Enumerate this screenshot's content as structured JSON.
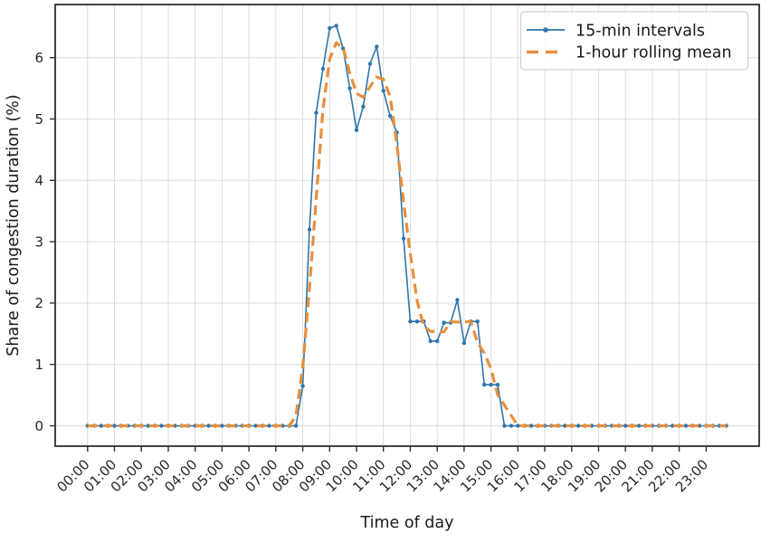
{
  "chart_data": {
    "type": "line",
    "xlabel": "Time of day",
    "ylabel": "Share of congestion duration (%)",
    "grid": true,
    "legend_position": "upper right",
    "ylim": [
      -0.33,
      6.87
    ],
    "yticks": [
      0,
      1,
      2,
      3,
      4,
      5,
      6
    ],
    "xticks": [
      "00:00",
      "01:00",
      "02:00",
      "03:00",
      "04:00",
      "05:00",
      "06:00",
      "07:00",
      "08:00",
      "09:00",
      "10:00",
      "11:00",
      "12:00",
      "13:00",
      "14:00",
      "15:00",
      "16:00",
      "17:00",
      "18:00",
      "19:00",
      "20:00",
      "21:00",
      "22:00",
      "23:00"
    ],
    "x": [
      "00:00",
      "00:15",
      "00:30",
      "00:45",
      "01:00",
      "01:15",
      "01:30",
      "01:45",
      "02:00",
      "02:15",
      "02:30",
      "02:45",
      "03:00",
      "03:15",
      "03:30",
      "03:45",
      "04:00",
      "04:15",
      "04:30",
      "04:45",
      "05:00",
      "05:15",
      "05:30",
      "05:45",
      "06:00",
      "06:15",
      "06:30",
      "06:45",
      "07:00",
      "07:15",
      "07:30",
      "07:45",
      "08:00",
      "08:15",
      "08:30",
      "08:45",
      "09:00",
      "09:15",
      "09:30",
      "09:45",
      "10:00",
      "10:15",
      "10:30",
      "10:45",
      "11:00",
      "11:15",
      "11:30",
      "11:45",
      "12:00",
      "12:15",
      "12:30",
      "12:45",
      "13:00",
      "13:15",
      "13:30",
      "13:45",
      "14:00",
      "14:15",
      "14:30",
      "14:45",
      "15:00",
      "15:15",
      "15:30",
      "15:45",
      "16:00",
      "16:15",
      "16:30",
      "16:45",
      "17:00",
      "17:15",
      "17:30",
      "17:45",
      "18:00",
      "18:15",
      "18:30",
      "18:45",
      "19:00",
      "19:15",
      "19:30",
      "19:45",
      "20:00",
      "20:15",
      "20:30",
      "20:45",
      "21:00",
      "21:15",
      "21:30",
      "21:45",
      "22:00",
      "22:15",
      "22:30",
      "22:45",
      "23:00",
      "23:15",
      "23:30",
      "23:45"
    ],
    "series": [
      {
        "name": "15-min intervals",
        "color": "#2e75ac",
        "line": "solid",
        "marker": "circle",
        "values": [
          0,
          0,
          0,
          0,
          0,
          0,
          0,
          0,
          0,
          0,
          0,
          0,
          0,
          0,
          0,
          0,
          0,
          0,
          0,
          0,
          0,
          0,
          0,
          0,
          0,
          0,
          0,
          0,
          0,
          0,
          0,
          0,
          0.65,
          3.2,
          5.1,
          5.82,
          6.48,
          6.52,
          6.15,
          5.5,
          4.82,
          5.2,
          5.9,
          6.18,
          5.46,
          5.05,
          4.78,
          3.05,
          1.7,
          1.7,
          1.7,
          1.38,
          1.38,
          1.68,
          1.68,
          2.05,
          1.35,
          1.7,
          1.7,
          0.67,
          0.67,
          0.67,
          0,
          0,
          0,
          0,
          0,
          0,
          0,
          0,
          0,
          0,
          0,
          0,
          0,
          0,
          0,
          0,
          0,
          0,
          0,
          0,
          0,
          0,
          0,
          0,
          0,
          0,
          0,
          0,
          0,
          0,
          0,
          0,
          0,
          0
        ]
      },
      {
        "name": "1-hour rolling mean",
        "color": "#e78f3d",
        "line": "dashed",
        "marker": "none",
        "values": [
          0,
          0,
          0,
          0,
          0,
          0,
          0,
          0,
          0,
          0,
          0,
          0,
          0,
          0,
          0,
          0,
          0,
          0,
          0,
          0,
          0,
          0,
          0,
          0,
          0,
          0,
          0,
          0,
          0,
          0,
          0,
          0.163,
          0.963,
          2.238,
          3.693,
          5.15,
          5.98,
          6.243,
          6.163,
          5.748,
          5.418,
          5.355,
          5.525,
          5.685,
          5.648,
          5.368,
          4.585,
          3.645,
          2.808,
          2.038,
          1.62,
          1.54,
          1.535,
          1.53,
          1.698,
          1.69,
          1.695,
          1.7,
          1.355,
          1.185,
          0.928,
          0.503,
          0.335,
          0.168,
          0,
          0,
          0,
          0,
          0,
          0,
          0,
          0,
          0,
          0,
          0,
          0,
          0,
          0,
          0,
          0,
          0,
          0,
          0,
          0,
          0,
          0,
          0,
          0,
          0,
          0,
          0,
          0,
          0,
          0,
          0,
          0
        ]
      }
    ]
  },
  "legend": {
    "item1": "15-min intervals",
    "item2": "1-hour rolling mean"
  }
}
